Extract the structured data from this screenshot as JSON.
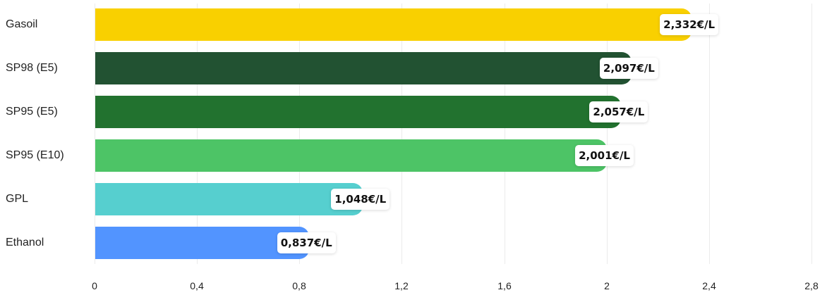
{
  "chart_data": {
    "type": "bar",
    "orientation": "horizontal",
    "title": "",
    "xlabel": "",
    "ylabel": "",
    "categories": [
      "Gasoil",
      "SP98 (E5)",
      "SP95 (E5)",
      "SP95 (E10)",
      "GPL",
      "Ethanol"
    ],
    "values": [
      2.332,
      2.097,
      2.057,
      2.001,
      1.048,
      0.837
    ],
    "value_labels": [
      "2,332€/L",
      "2,097€/L",
      "2,057€/L",
      "2,001€/L",
      "1,048€/L",
      "0,837€/L"
    ],
    "colors": [
      "#f9d000",
      "#225232",
      "#22722f",
      "#4dc466",
      "#56cfcf",
      "#5294ff"
    ],
    "unit": "€/L",
    "xlim": [
      0,
      2.8
    ],
    "xticks": [
      0,
      0.4,
      0.8,
      1.2,
      1.6,
      2,
      2.4,
      2.8
    ],
    "xtick_labels": [
      "0",
      "0,4",
      "0,8",
      "1,2",
      "1,6",
      "2",
      "2,4",
      "2,8"
    ],
    "grid": true,
    "legend": "none"
  }
}
